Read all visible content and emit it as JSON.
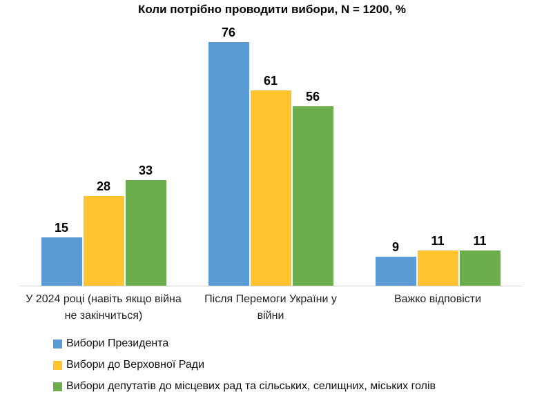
{
  "chart_data": {
    "type": "bar",
    "title": "Коли потрібно проводити вибори, N = 1200, %",
    "categories": [
      "У 2024 році (навіть якщо війна не закінчиться)",
      "Після Перемоги України у війни",
      "Важко відповісти"
    ],
    "series": [
      {
        "name": "Вибори Президента",
        "color": "#5B9BD5",
        "values": [
          15,
          76,
          9
        ]
      },
      {
        "name": "Вибори до Верховної Ради",
        "color": "#FFC32E",
        "values": [
          28,
          61,
          11
        ]
      },
      {
        "name": "Вибори депутатів до місцевих рад та сільських, селищних, міських голів",
        "color": "#6CAD4D",
        "values": [
          33,
          56,
          11
        ]
      }
    ],
    "ylim": [
      0,
      80
    ],
    "grid": false,
    "y_axis_visible": false,
    "legend_position": "bottom-left",
    "axis_line_color": "#D6D6D6",
    "value_labels": "above-bars"
  }
}
